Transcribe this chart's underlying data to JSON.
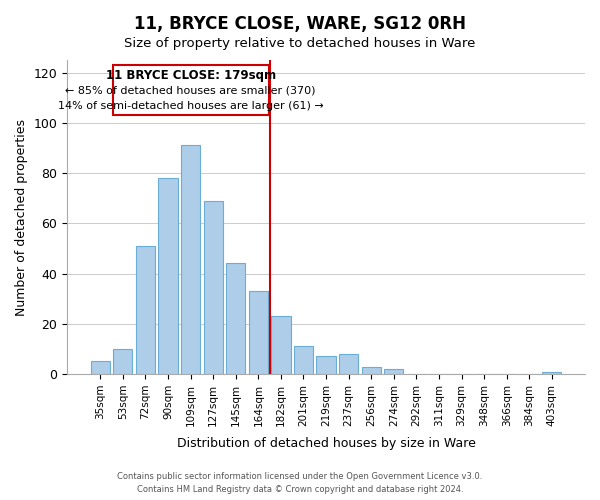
{
  "title": "11, BRYCE CLOSE, WARE, SG12 0RH",
  "subtitle": "Size of property relative to detached houses in Ware",
  "xlabel": "Distribution of detached houses by size in Ware",
  "ylabel": "Number of detached properties",
  "bar_labels": [
    "35sqm",
    "53sqm",
    "72sqm",
    "90sqm",
    "109sqm",
    "127sqm",
    "145sqm",
    "164sqm",
    "182sqm",
    "201sqm",
    "219sqm",
    "237sqm",
    "256sqm",
    "274sqm",
    "292sqm",
    "311sqm",
    "329sqm",
    "348sqm",
    "366sqm",
    "384sqm",
    "403sqm"
  ],
  "bar_values": [
    5,
    10,
    51,
    78,
    91,
    69,
    44,
    33,
    23,
    11,
    7,
    8,
    3,
    2,
    0,
    0,
    0,
    0,
    0,
    0,
    1
  ],
  "bar_color": "#aecde8",
  "bar_edge_color": "#6aaed6",
  "vline_x": 7.5,
  "vline_color": "#cc0000",
  "annotation_title": "11 BRYCE CLOSE: 179sqm",
  "annotation_line1": "← 85% of detached houses are smaller (370)",
  "annotation_line2": "14% of semi-detached houses are larger (61) →",
  "annotation_box_color": "#ffffff",
  "annotation_box_edge": "#cc0000",
  "ylim": [
    0,
    125
  ],
  "yticks": [
    0,
    20,
    40,
    60,
    80,
    100,
    120
  ],
  "footer1": "Contains HM Land Registry data © Crown copyright and database right 2024.",
  "footer2": "Contains public sector information licensed under the Open Government Licence v3.0."
}
